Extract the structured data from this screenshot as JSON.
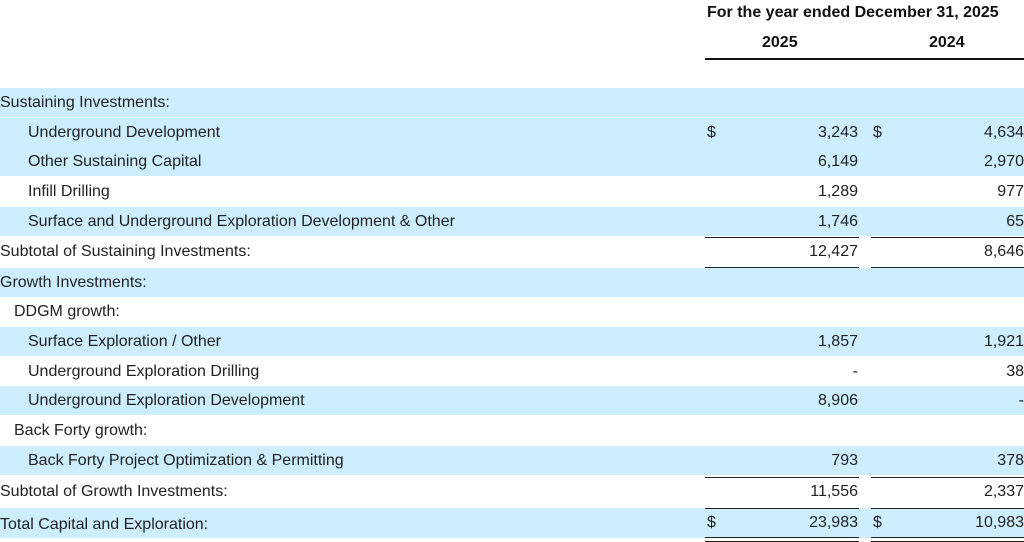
{
  "header": {
    "period": "For the year ended December 31, 2025",
    "col_2025": "2025",
    "col_2024": "2024"
  },
  "rows": [
    {
      "label": "Sustaining Investments:",
      "cur_a": "",
      "val_a": "",
      "cur_b": "",
      "val_b": ""
    },
    {
      "label": "Underground Development",
      "cur_a": "$",
      "val_a": "3,243",
      "cur_b": "$",
      "val_b": "4,634"
    },
    {
      "label": "Other Sustaining Capital",
      "cur_a": "",
      "val_a": "6,149",
      "cur_b": "",
      "val_b": "2,970"
    },
    {
      "label": "Infill Drilling",
      "cur_a": "",
      "val_a": "1,289",
      "cur_b": "",
      "val_b": "977"
    },
    {
      "label": "Surface and Underground Exploration Development & Other",
      "cur_a": "",
      "val_a": "1,746",
      "cur_b": "",
      "val_b": "65"
    },
    {
      "label": "Subtotal of Sustaining Investments:",
      "cur_a": "",
      "val_a": "12,427",
      "cur_b": "",
      "val_b": "8,646"
    },
    {
      "label": "Growth Investments:",
      "cur_a": "",
      "val_a": "",
      "cur_b": "",
      "val_b": ""
    },
    {
      "label": "DDGM growth:",
      "cur_a": "",
      "val_a": "",
      "cur_b": "",
      "val_b": ""
    },
    {
      "label": "Surface Exploration / Other",
      "cur_a": "",
      "val_a": "1,857",
      "cur_b": "",
      "val_b": "1,921"
    },
    {
      "label": "Underground Exploration Drilling",
      "cur_a": "",
      "val_a": "-",
      "cur_b": "",
      "val_b": "38"
    },
    {
      "label": "Underground Exploration Development",
      "cur_a": "",
      "val_a": "8,906",
      "cur_b": "",
      "val_b": "-"
    },
    {
      "label": "Back Forty growth:",
      "cur_a": "",
      "val_a": "",
      "cur_b": "",
      "val_b": ""
    },
    {
      "label": "Back Forty Project Optimization & Permitting",
      "cur_a": "",
      "val_a": "793",
      "cur_b": "",
      "val_b": "378"
    },
    {
      "label": "Subtotal of Growth Investments:",
      "cur_a": "",
      "val_a": "11,556",
      "cur_b": "",
      "val_b": "2,337"
    },
    {
      "label": "Total Capital and Exploration:",
      "cur_a": "$",
      "val_a": "23,983",
      "cur_b": "$",
      "val_b": "10,983"
    }
  ]
}
